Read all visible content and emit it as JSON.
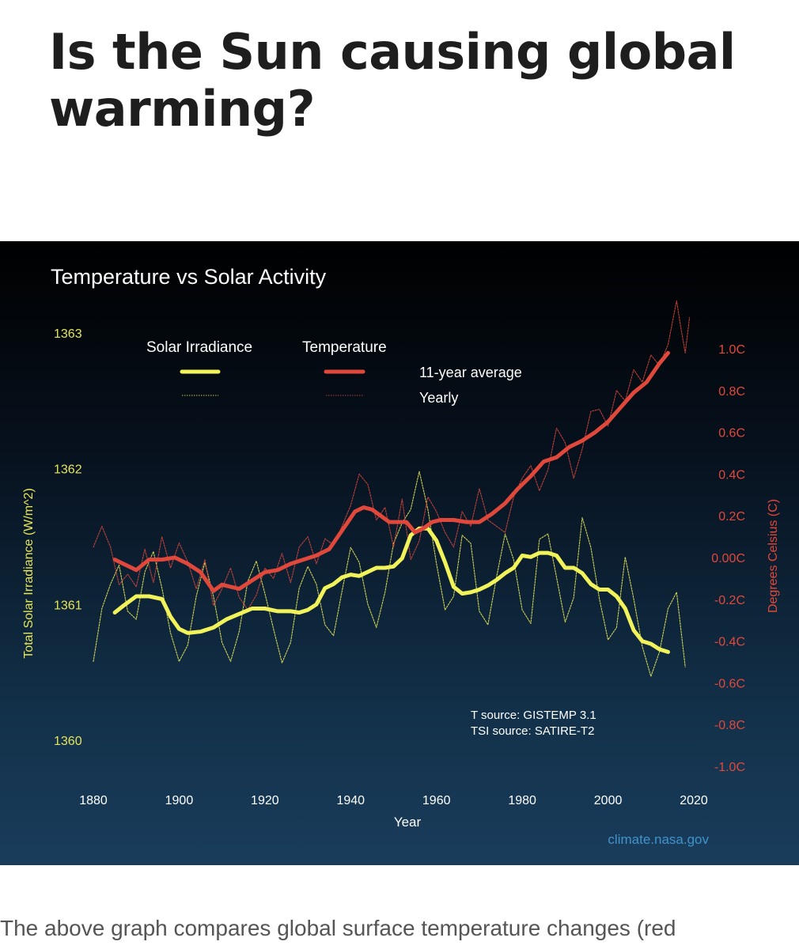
{
  "article": {
    "headline": "Is the Sun causing global warming?",
    "body_text_partial": "The above graph compares global surface temperature changes (red"
  },
  "colors": {
    "solar": "#f2f25a",
    "temperature": "#e0483b",
    "left_axis_text": "#e6e65a",
    "right_axis_text": "#e0483b",
    "credit": "#3f93cc"
  },
  "chart_data": {
    "type": "line",
    "title": "Temperature vs Solar Activity",
    "xlabel": "Year",
    "ylabel_left": "Total Solar Irradiance (W/m^2)",
    "ylabel_right": "Degrees Celsius (C)",
    "xlim": [
      1880,
      2020
    ],
    "ylim_left": [
      1360,
      1363
    ],
    "ylim_right": [
      -1.0,
      1.0
    ],
    "x_ticks": [
      "1880",
      "1900",
      "1920",
      "1940",
      "1960",
      "1980",
      "2000",
      "2020"
    ],
    "y_ticks_left": [
      "1360",
      "1361",
      "1362",
      "1363"
    ],
    "y_ticks_right": [
      "-1.0C",
      "-0.8C",
      "-0.6C",
      "-0.4C",
      "-0.2C",
      "0.00C",
      "0.2C",
      "0.4C",
      "0.6C",
      "0.8C",
      "1.0C"
    ],
    "legend": {
      "group_solar": "Solar Irradiance",
      "group_temperature": "Temperature",
      "label_average": "11-year average",
      "label_yearly": "Yearly"
    },
    "annotations": [
      "T source: GISTEMP 3.1",
      "TSI source: SATIRE-T2"
    ],
    "credit": "climate.nasa.gov",
    "series": [
      {
        "name": "Solar Irradiance 11-year average",
        "axis": "left",
        "style": "thick",
        "x": [
          1885,
          1887,
          1890,
          1893,
          1896,
          1898,
          1900,
          1902,
          1905,
          1908,
          1911,
          1914,
          1917,
          1920,
          1923,
          1926,
          1928,
          1930,
          1932,
          1934,
          1936,
          1938,
          1940,
          1942,
          1944,
          1946,
          1948,
          1950,
          1952,
          1954,
          1956,
          1958,
          1960,
          1962,
          1964,
          1966,
          1968,
          1970,
          1972,
          1974,
          1976,
          1978,
          1980,
          1982,
          1984,
          1986,
          1988,
          1990,
          1992,
          1994,
          1996,
          1998,
          2000,
          2002,
          2004,
          2006,
          2008,
          2010,
          2012,
          2014
        ],
        "y": [
          1360.94,
          1360.99,
          1361.06,
          1361.06,
          1361.04,
          1360.91,
          1360.82,
          1360.79,
          1360.8,
          1360.83,
          1360.89,
          1360.93,
          1360.97,
          1360.97,
          1360.95,
          1360.95,
          1360.94,
          1360.96,
          1361.0,
          1361.12,
          1361.15,
          1361.2,
          1361.22,
          1361.21,
          1361.24,
          1361.27,
          1361.27,
          1361.28,
          1361.34,
          1361.51,
          1361.56,
          1361.56,
          1361.47,
          1361.31,
          1361.13,
          1361.08,
          1361.09,
          1361.11,
          1361.14,
          1361.18,
          1361.23,
          1361.27,
          1361.36,
          1361.35,
          1361.38,
          1361.38,
          1361.36,
          1361.27,
          1361.27,
          1361.23,
          1361.15,
          1361.11,
          1361.11,
          1361.06,
          1360.97,
          1360.81,
          1360.73,
          1360.71,
          1360.67,
          1360.65
        ]
      },
      {
        "name": "Solar Irradiance yearly",
        "axis": "left",
        "style": "thin",
        "x": [
          1880,
          1882,
          1884,
          1886,
          1888,
          1890,
          1892,
          1894,
          1896,
          1898,
          1900,
          1902,
          1904,
          1906,
          1908,
          1910,
          1912,
          1914,
          1916,
          1918,
          1920,
          1922,
          1924,
          1926,
          1928,
          1930,
          1932,
          1934,
          1936,
          1938,
          1940,
          1942,
          1944,
          1946,
          1948,
          1950,
          1952,
          1954,
          1956,
          1958,
          1960,
          1962,
          1964,
          1966,
          1968,
          1970,
          1972,
          1974,
          1976,
          1978,
          1980,
          1982,
          1984,
          1986,
          1988,
          1990,
          1992,
          1994,
          1996,
          1998,
          2000,
          2002,
          2004,
          2006,
          2008,
          2010,
          2012,
          2014,
          2016,
          2018
        ],
        "y": [
          1360.58,
          1360.97,
          1361.15,
          1361.29,
          1360.95,
          1360.89,
          1361.24,
          1361.39,
          1361.12,
          1360.79,
          1360.58,
          1360.7,
          1361.06,
          1361.31,
          1361.06,
          1360.72,
          1360.58,
          1360.8,
          1361.17,
          1361.32,
          1361.08,
          1360.82,
          1360.57,
          1360.72,
          1361.12,
          1361.28,
          1361.15,
          1360.85,
          1360.77,
          1361.1,
          1361.42,
          1361.31,
          1361.0,
          1360.83,
          1361.09,
          1361.45,
          1361.6,
          1361.7,
          1361.98,
          1361.7,
          1361.3,
          1360.96,
          1361.06,
          1361.51,
          1361.45,
          1360.95,
          1360.85,
          1361.2,
          1361.52,
          1361.33,
          1360.96,
          1360.86,
          1361.48,
          1361.52,
          1361.2,
          1360.87,
          1361.05,
          1361.64,
          1361.42,
          1361.04,
          1360.74,
          1360.83,
          1361.35,
          1361.04,
          1360.69,
          1360.47,
          1360.65,
          1360.97,
          1361.09,
          1360.54
        ]
      },
      {
        "name": "Temperature 11-year average",
        "axis": "right",
        "style": "thick",
        "x": [
          1885,
          1887,
          1890,
          1893,
          1896,
          1899,
          1902,
          1905,
          1908,
          1910,
          1912,
          1914,
          1917,
          1920,
          1923,
          1926,
          1929,
          1932,
          1935,
          1937,
          1939,
          1941,
          1943,
          1945,
          1947,
          1949,
          1951,
          1953,
          1955,
          1957,
          1959,
          1961,
          1964,
          1967,
          1970,
          1973,
          1976,
          1979,
          1982,
          1985,
          1988,
          1991,
          1994,
          1997,
          2000,
          2003,
          2006,
          2009,
          2012,
          2014
        ],
        "y": [
          -0.01,
          -0.03,
          -0.06,
          -0.01,
          -0.01,
          0.0,
          -0.03,
          -0.07,
          -0.16,
          -0.13,
          -0.14,
          -0.15,
          -0.11,
          -0.07,
          -0.06,
          -0.03,
          -0.01,
          0.01,
          0.04,
          0.1,
          0.16,
          0.22,
          0.24,
          0.23,
          0.2,
          0.17,
          0.17,
          0.17,
          0.12,
          0.14,
          0.17,
          0.18,
          0.18,
          0.17,
          0.17,
          0.21,
          0.26,
          0.33,
          0.39,
          0.46,
          0.48,
          0.53,
          0.56,
          0.6,
          0.65,
          0.72,
          0.79,
          0.84,
          0.93,
          0.98
        ]
      },
      {
        "name": "Temperature yearly",
        "axis": "right",
        "style": "thin",
        "x": [
          1880,
          1882,
          1884,
          1886,
          1888,
          1890,
          1892,
          1894,
          1896,
          1898,
          1900,
          1902,
          1904,
          1906,
          1908,
          1910,
          1912,
          1914,
          1916,
          1918,
          1920,
          1922,
          1924,
          1926,
          1928,
          1930,
          1932,
          1934,
          1936,
          1938,
          1940,
          1942,
          1944,
          1946,
          1948,
          1950,
          1952,
          1954,
          1956,
          1958,
          1960,
          1962,
          1964,
          1966,
          1968,
          1970,
          1972,
          1974,
          1976,
          1978,
          1980,
          1982,
          1984,
          1986,
          1988,
          1990,
          1992,
          1994,
          1996,
          1998,
          2000,
          2002,
          2004,
          2006,
          2008,
          2010,
          2012,
          2014,
          2016,
          2017,
          2018,
          2019
        ],
        "y": [
          0.05,
          0.15,
          0.05,
          -0.13,
          -0.08,
          -0.14,
          0.04,
          -0.12,
          0.1,
          -0.05,
          0.07,
          -0.02,
          -0.15,
          -0.01,
          -0.23,
          -0.15,
          -0.05,
          -0.19,
          -0.25,
          -0.18,
          -0.05,
          -0.1,
          0.02,
          -0.12,
          0.05,
          0.1,
          -0.03,
          0.09,
          0.06,
          0.15,
          0.25,
          0.4,
          0.35,
          0.18,
          0.24,
          0.05,
          0.28,
          -0.01,
          0.08,
          0.29,
          0.22,
          0.12,
          0.05,
          0.22,
          0.15,
          0.33,
          0.18,
          0.15,
          0.12,
          0.29,
          0.38,
          0.44,
          0.32,
          0.42,
          0.62,
          0.55,
          0.38,
          0.52,
          0.7,
          0.71,
          0.63,
          0.8,
          0.75,
          0.9,
          0.84,
          0.97,
          0.92,
          1.02,
          1.23,
          1.1,
          0.98,
          1.15
        ]
      }
    ]
  }
}
